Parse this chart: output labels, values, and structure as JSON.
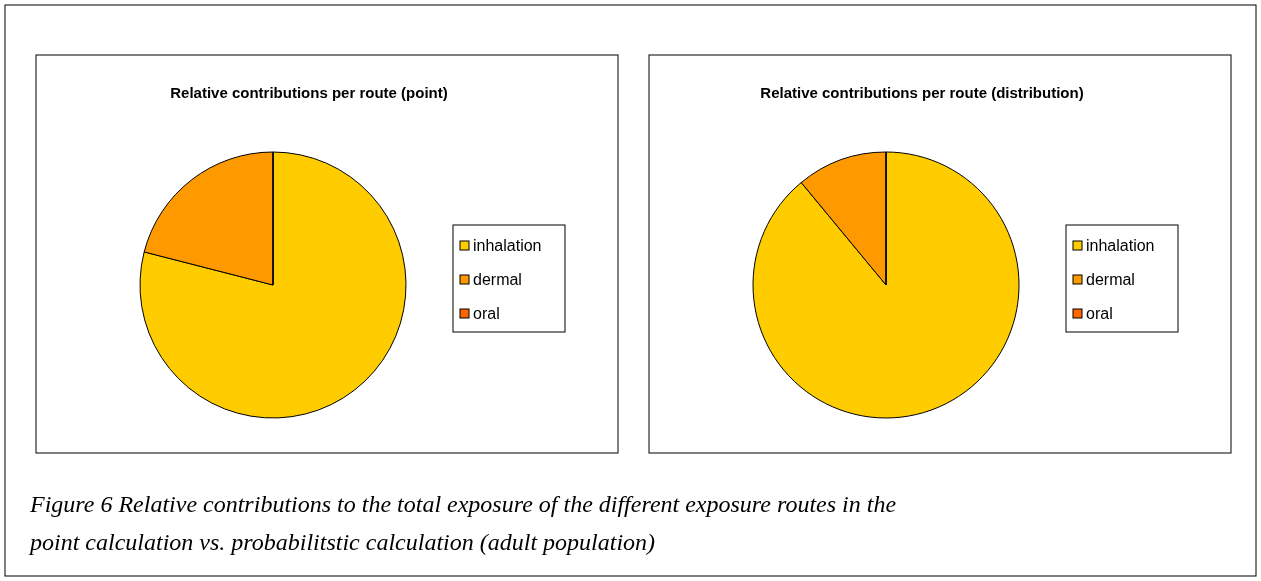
{
  "chart_data": [
    {
      "type": "pie",
      "title": "Relative contributions per route (point)",
      "categories": [
        "inhalation",
        "dermal",
        "oral"
      ],
      "values": [
        79,
        21,
        0
      ],
      "colors": [
        "#ffcc00",
        "#ff9900",
        "#ff6600"
      ],
      "legend": "right"
    },
    {
      "type": "pie",
      "title": "Relative contributions per route (distribution)",
      "categories": [
        "inhalation",
        "dermal",
        "oral"
      ],
      "values": [
        89,
        11,
        0
      ],
      "colors": [
        "#ffcc00",
        "#ff9900",
        "#ff6600"
      ],
      "legend": "right",
      "annotations": [
        "Figure 6 Relative contributions to the total exposure of the different exposure routes in the point calculation vs. probabilitstic calculation (adult population)"
      ]
    }
  ]
}
